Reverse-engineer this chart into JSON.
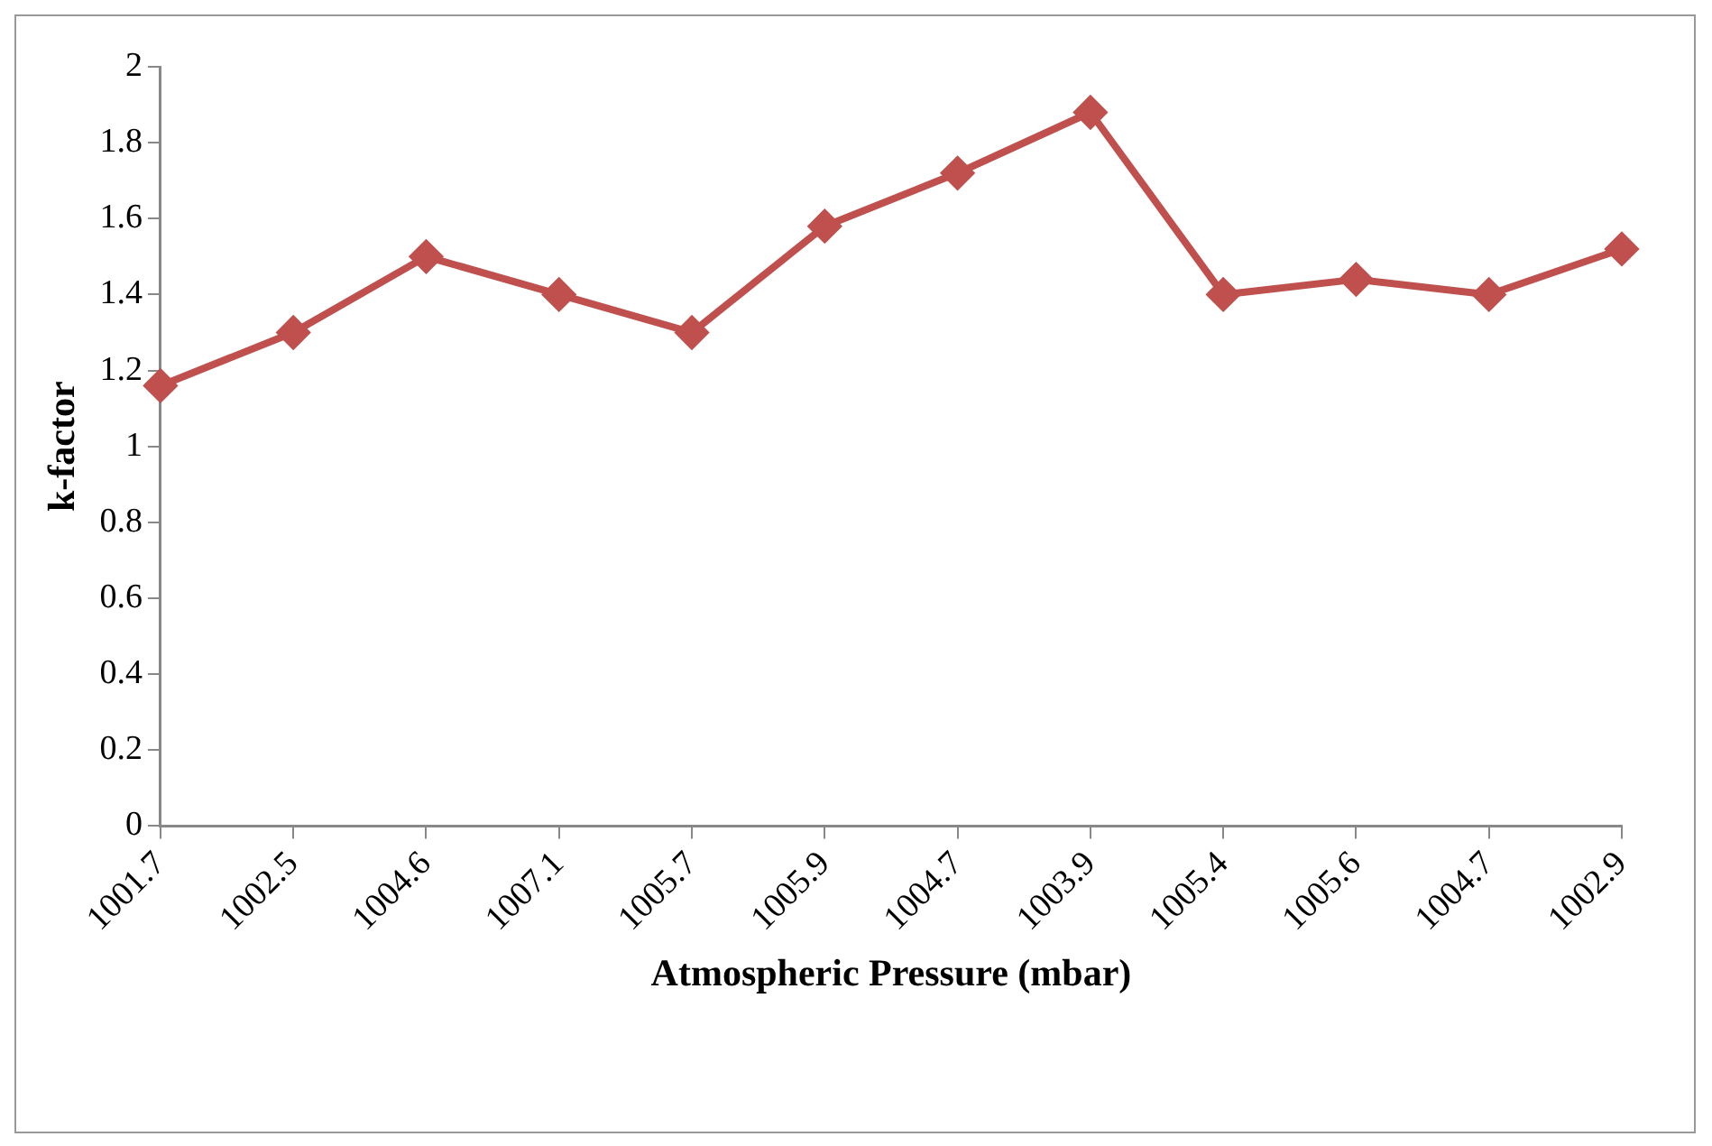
{
  "chart_data": {
    "type": "line",
    "xlabel": "Atmospheric Pressure (mbar)",
    "ylabel": "k-factor",
    "categories": [
      "1001.7",
      "1002.5",
      "1004.6",
      "1007.1",
      "1005.7",
      "1005.9",
      "1004.7",
      "1003.9",
      "1005.4",
      "1005.6",
      "1004.7",
      "1002.9"
    ],
    "series": [
      {
        "color": "#c0504d",
        "values": [
          1.16,
          1.3,
          1.5,
          1.4,
          1.3,
          1.58,
          1.72,
          1.88,
          1.4,
          1.44,
          1.4,
          1.52
        ]
      }
    ],
    "ylim": [
      0,
      2
    ],
    "yticks": [
      0,
      0.2,
      0.4,
      0.6,
      0.8,
      1,
      1.2,
      1.4,
      1.6,
      1.8,
      2
    ],
    "marker": "diamond",
    "line_style": "solid"
  }
}
